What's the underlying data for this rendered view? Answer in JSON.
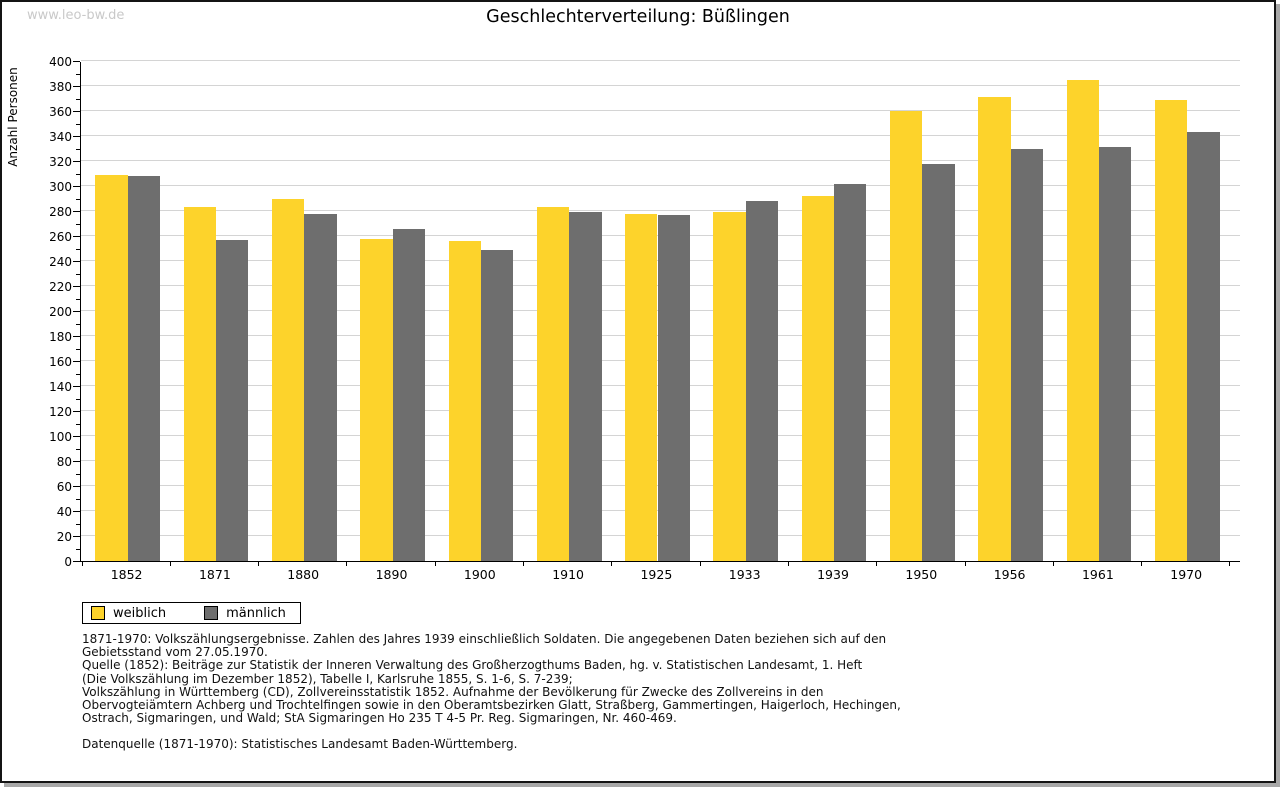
{
  "watermark": "www.leo-bw.de",
  "title": "Geschlechterverteilung: Büßlingen",
  "chart_data": {
    "type": "bar",
    "title": "Geschlechterverteilung: Büßlingen",
    "xlabel": "",
    "ylabel": "Anzahl Personen",
    "categories": [
      "1852",
      "1871",
      "1880",
      "1890",
      "1900",
      "1910",
      "1925",
      "1933",
      "1939",
      "1950",
      "1956",
      "1961",
      "1970"
    ],
    "series": [
      {
        "name": "weiblich",
        "color": "#fdd32b",
        "values": [
          309,
          283,
          290,
          258,
          256,
          283,
          278,
          279,
          292,
          360,
          371,
          385,
          369
        ]
      },
      {
        "name": "männlich",
        "color": "#6e6e6e",
        "values": [
          308,
          257,
          278,
          266,
          249,
          279,
          277,
          288,
          302,
          318,
          330,
          331,
          343
        ]
      }
    ],
    "ylim": [
      0,
      400
    ],
    "ytick_step": 20,
    "yminor_step": 10,
    "grid": true,
    "legend_position": "bottom-left"
  },
  "colors": {
    "grid": "#d4d4d4",
    "axis": "#000000",
    "watermark": "#c9c9c9",
    "frame_shadow": "#a8a8a8"
  },
  "footnotes": {
    "lines": [
      "1871-1970: Volkszählungsergebnisse. Zahlen des Jahres 1939 einschließlich Soldaten. Die angegebenen Daten beziehen sich auf den",
      "Gebietsstand vom 27.05.1970.",
      "Quelle (1852): Beiträge zur Statistik der Inneren Verwaltung des Großherzogthums Baden, hg. v. Statistischen Landesamt, 1. Heft",
      "(Die Volkszählung im Dezember 1852), Tabelle I, Karlsruhe 1855, S. 1-6, S. 7-239;",
      "Volkszählung in Württemberg (CD), Zollvereinsstatistik 1852. Aufnahme der Bevölkerung für Zwecke des Zollvereins in den",
      "Obervogteiämtern Achberg und Trochtelfingen sowie in den Oberamtsbezirken Glatt, Straßberg, Gammertingen, Haigerloch, Hechingen,",
      "Ostrach, Sigmaringen, und Wald; StA Sigmaringen Ho 235 T 4-5 Pr. Reg. Sigmaringen, Nr. 460-469.",
      "Datenquelle (1871-1970): Statistisches Landesamt Baden-Württemberg."
    ]
  }
}
